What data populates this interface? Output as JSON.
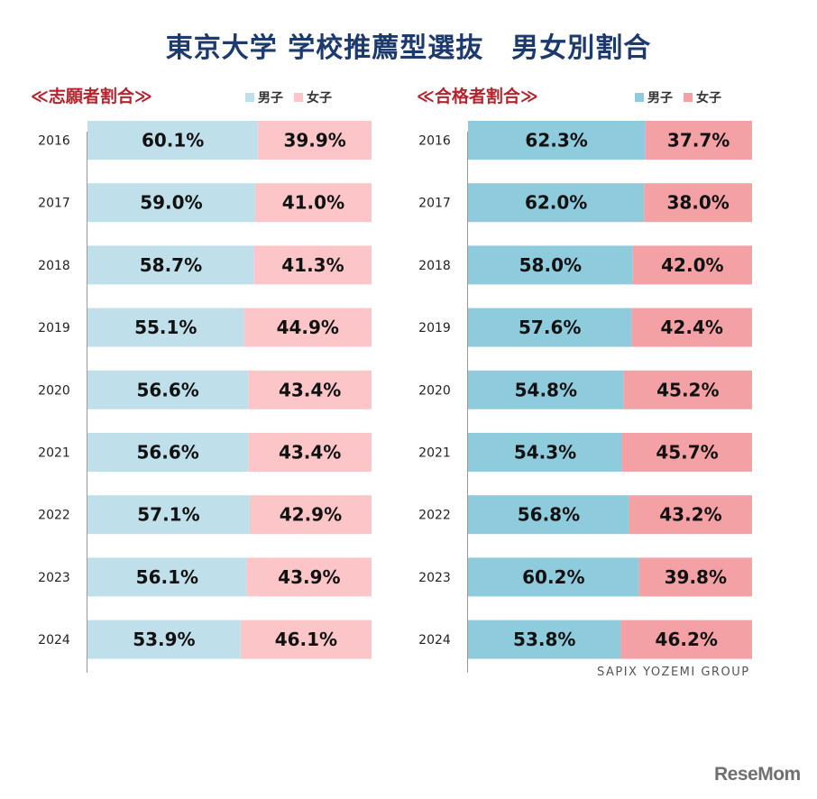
{
  "title": "東京大学 学校推薦型選抜　男女別割合",
  "legend": {
    "male": "男子",
    "female": "女子"
  },
  "source": "SAPIX YOZEMI GROUP",
  "logo": "ReseMom",
  "colors": {
    "applicant_male": "#bfe0ea",
    "applicant_female": "#fcc6c9",
    "admitted_male": "#8ecbdc",
    "admitted_female": "#f4a1a6",
    "title": "#1d3a6e",
    "heading": "#b4242f"
  },
  "chart_data": [
    {
      "type": "bar",
      "orientation": "horizontal-stacked-100",
      "title": "≪志願者割合≫",
      "categories": [
        "2016",
        "2017",
        "2018",
        "2019",
        "2020",
        "2021",
        "2022",
        "2023",
        "2024"
      ],
      "series": [
        {
          "name": "男子",
          "values": [
            60.1,
            59.0,
            58.7,
            55.1,
            56.6,
            56.6,
            57.1,
            56.1,
            53.9
          ],
          "labels": [
            "60.1%",
            "59.0%",
            "58.7%",
            "55.1%",
            "56.6%",
            "56.6%",
            "57.1%",
            "56.1%",
            "53.9%"
          ]
        },
        {
          "name": "女子",
          "values": [
            39.9,
            41.0,
            41.3,
            44.9,
            43.4,
            43.4,
            42.9,
            43.9,
            46.1
          ],
          "labels": [
            "39.9%",
            "41.0%",
            "41.3%",
            "44.9%",
            "43.4%",
            "43.4%",
            "42.9%",
            "43.9%",
            "46.1%"
          ]
        }
      ],
      "xlim": [
        0,
        100
      ],
      "legend_position": "top-right"
    },
    {
      "type": "bar",
      "orientation": "horizontal-stacked-100",
      "title": "≪合格者割合≫",
      "categories": [
        "2016",
        "2017",
        "2018",
        "2019",
        "2020",
        "2021",
        "2022",
        "2023",
        "2024"
      ],
      "series": [
        {
          "name": "男子",
          "values": [
            62.3,
            62.0,
            58.0,
            57.6,
            54.8,
            54.3,
            56.8,
            60.2,
            53.8
          ],
          "labels": [
            "62.3%",
            "62.0%",
            "58.0%",
            "57.6%",
            "54.8%",
            "54.3%",
            "56.8%",
            "60.2%",
            "53.8%"
          ]
        },
        {
          "name": "女子",
          "values": [
            37.7,
            38.0,
            42.0,
            42.4,
            45.2,
            45.7,
            43.2,
            39.8,
            46.2
          ],
          "labels": [
            "37.7%",
            "38.0%",
            "42.0%",
            "42.4%",
            "45.2%",
            "45.7%",
            "43.2%",
            "39.8%",
            "46.2%"
          ]
        }
      ],
      "xlim": [
        0,
        100
      ],
      "legend_position": "top-right"
    }
  ]
}
